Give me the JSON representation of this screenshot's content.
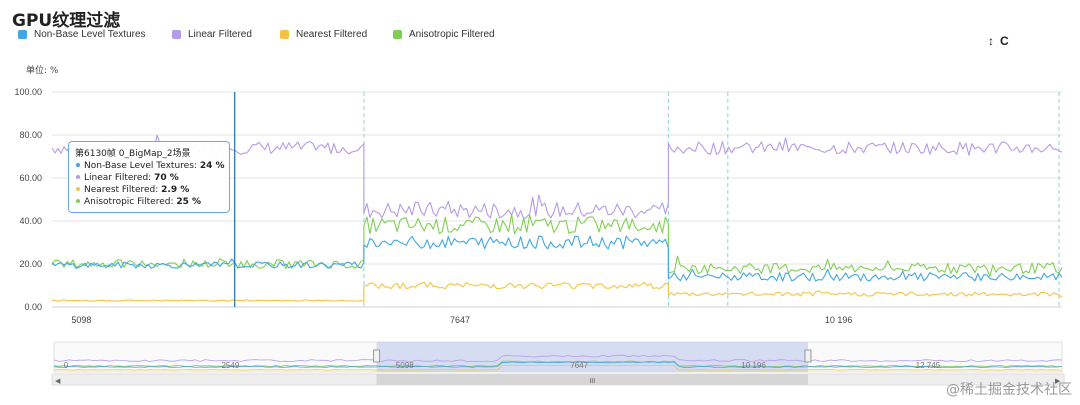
{
  "title": "GPU纹理过滤",
  "unit_label": "单位: %",
  "toolbar": {
    "vertical_icon": "↕",
    "reset_icon": "C"
  },
  "legend": [
    {
      "name": "Non-Base Level Textures",
      "color": "#3fa7e1"
    },
    {
      "name": "Linear Filtered",
      "color": "#b39ce8"
    },
    {
      "name": "Nearest Filtered",
      "color": "#f5c342"
    },
    {
      "name": "Anisotropic Filtered",
      "color": "#7fcf52"
    }
  ],
  "tooltip": {
    "header": "第6130帧 0_BigMap_2场景",
    "rows": [
      {
        "label": "Non-Base Level Textures:",
        "value": "24 %",
        "color": "#3fa7e1"
      },
      {
        "label": "Linear Filtered:",
        "value": "70 %",
        "color": "#b39ce8"
      },
      {
        "label": "Nearest Filtered:",
        "value": "2.9 %",
        "color": "#f5c342"
      },
      {
        "label": "Anisotropic Filtered:",
        "value": "25 %",
        "color": "#7fcf52"
      }
    ]
  },
  "navigator": {
    "ticks": [
      "0",
      "2549",
      "5098",
      "7647",
      "10 196",
      "12 745"
    ],
    "handle_label": "III"
  },
  "watermark": "@稀土掘金技术社区",
  "chart_data": {
    "type": "line",
    "title": "GPU纹理过滤",
    "ylabel": "单位: %",
    "ylim": [
      0,
      100
    ],
    "y_ticks": [
      "100.00",
      "80.00",
      "60.00",
      "40.00",
      "20.00",
      "0.00"
    ],
    "x_ticks": [
      {
        "value": 5098,
        "label": "5098"
      },
      {
        "value": 7647,
        "label": "7647"
      },
      {
        "value": 10196,
        "label": "10 196"
      }
    ],
    "xlim": [
      4900,
      11700
    ],
    "crosshair_frame": 6130,
    "scene_boundaries": [
      7000,
      9050,
      9450,
      11680
    ],
    "series": [
      {
        "name": "Linear Filtered",
        "color": "#b39ce8",
        "segments": [
          {
            "x": [
              4900,
              7000
            ],
            "level": 74,
            "noise": 3
          },
          {
            "x": [
              7000,
              9050
            ],
            "level": 45,
            "noise": 4
          },
          {
            "x": [
              9050,
              11700
            ],
            "level": 74,
            "noise": 3
          }
        ]
      },
      {
        "name": "Anisotropic Filtered",
        "color": "#7fcf52",
        "segments": [
          {
            "x": [
              4900,
              7000
            ],
            "level": 20,
            "noise": 2
          },
          {
            "x": [
              7000,
              9050
            ],
            "level": 38,
            "noise": 4
          },
          {
            "x": [
              9050,
              11700
            ],
            "level": 18,
            "noise": 2.5
          }
        ]
      },
      {
        "name": "Non-Base Level Textures",
        "color": "#3fa7e1",
        "segments": [
          {
            "x": [
              4900,
              7000
            ],
            "level": 19.5,
            "noise": 1.5
          },
          {
            "x": [
              7000,
              9050
            ],
            "level": 30,
            "noise": 3
          },
          {
            "x": [
              9050,
              11700
            ],
            "level": 14,
            "noise": 2
          }
        ]
      },
      {
        "name": "Nearest Filtered",
        "color": "#f5c342",
        "segments": [
          {
            "x": [
              4900,
              7000
            ],
            "level": 3,
            "noise": 0.3
          },
          {
            "x": [
              7000,
              9050
            ],
            "level": 10,
            "noise": 1.5
          },
          {
            "x": [
              9050,
              11700
            ],
            "level": 6,
            "noise": 1
          }
        ]
      }
    ]
  }
}
